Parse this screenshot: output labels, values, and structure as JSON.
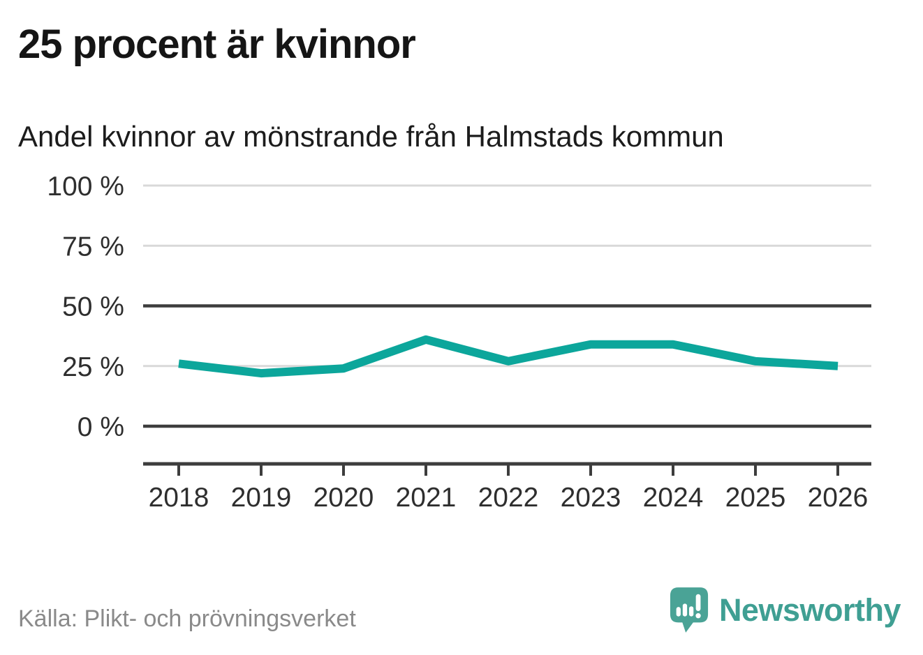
{
  "header": {
    "title": "25 procent är kvinnor",
    "subtitle": "Andel kvinnor av mönstrande från Halmstads kommun"
  },
  "chart_data": {
    "type": "line",
    "title": "25 procent är kvinnor",
    "subtitle": "Andel kvinnor av mönstrande från Halmstads kommun",
    "categories": [
      "2018",
      "2019",
      "2020",
      "2021",
      "2022",
      "2023",
      "2024",
      "2025",
      "2026"
    ],
    "series": [
      {
        "name": "Andel kvinnor av mönstrande",
        "values": [
          26,
          22,
          24,
          36,
          27,
          34,
          34,
          27,
          25
        ]
      }
    ],
    "unit": "%",
    "ylim": [
      0,
      100
    ],
    "grid": true,
    "legend_position": "none",
    "y_ticks": [
      {
        "value": 0,
        "label": "0 %",
        "emphasized": true
      },
      {
        "value": 25,
        "label": "25 %",
        "emphasized": false
      },
      {
        "value": 50,
        "label": "50 %",
        "emphasized": true
      },
      {
        "value": 75,
        "label": "75 %",
        "emphasized": false
      },
      {
        "value": 100,
        "label": "100 %",
        "emphasized": false
      }
    ]
  },
  "footer": {
    "source": "Källa: Plikt- och prövningsverket",
    "brand": "Newsworthy",
    "brand_icon": "speech-bubble-bar-chart-exclamation-icon"
  },
  "colors": {
    "accent_line": "#0ca69b",
    "grid_light": "#d9d9d9",
    "grid_dark": "#3d3d3d",
    "axis_line": "#3d3d3d",
    "axis_text": "#2e2e2e",
    "title_text": "#151515",
    "muted_text": "#8a8a8a",
    "brand_text": "#3f9f93",
    "brand_bubble": "#4aa396"
  }
}
